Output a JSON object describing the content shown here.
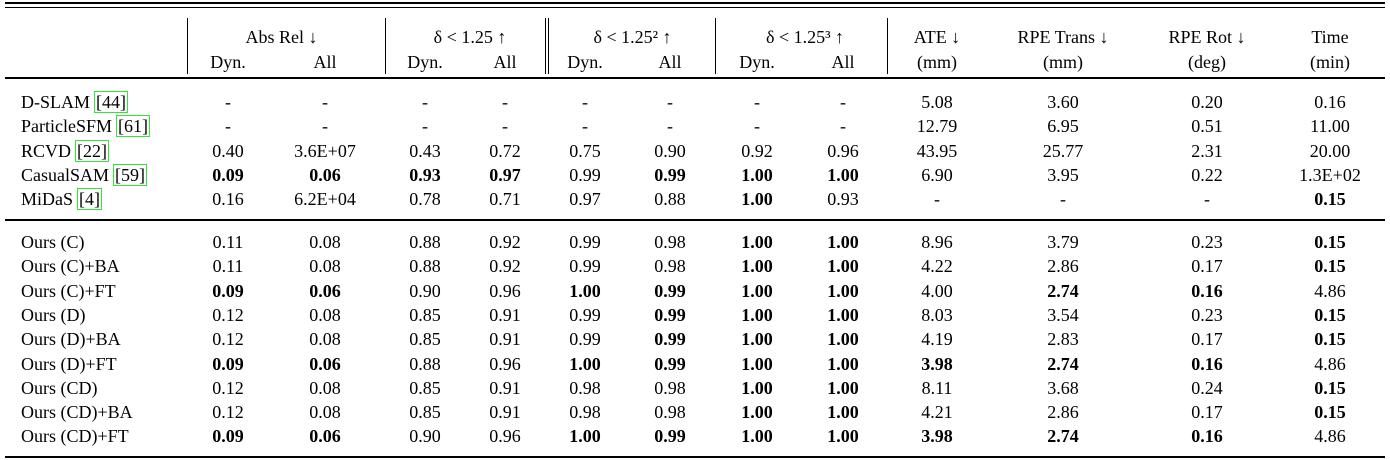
{
  "table": {
    "header": {
      "groups": [
        {
          "title": "Abs Rel ↓",
          "sub": [
            "Dyn.",
            "All"
          ]
        },
        {
          "title": "δ < 1.25 ↑",
          "sub": [
            "Dyn.",
            "All"
          ]
        },
        {
          "title": "δ < 1.25² ↑",
          "sub": [
            "Dyn.",
            "All"
          ]
        },
        {
          "title": "δ < 1.25³ ↑",
          "sub": [
            "Dyn.",
            "All"
          ]
        },
        {
          "title": "ATE ↓",
          "sub": [
            "(mm)"
          ]
        },
        {
          "title": "RPE Trans ↓",
          "sub": [
            "(mm)"
          ]
        },
        {
          "title": "RPE Rot ↓",
          "sub": [
            "(deg)"
          ]
        },
        {
          "title": "Time",
          "sub": [
            "(min)"
          ]
        }
      ]
    },
    "sections": [
      {
        "rows": [
          {
            "label": "D-SLAM",
            "cite": "[44]",
            "cells": [
              "-",
              "-",
              "-",
              "-",
              "-",
              "-",
              "-",
              "-",
              "5.08",
              "3.60",
              "0.20",
              "0.16"
            ],
            "bold": []
          },
          {
            "label": "ParticleSFM",
            "cite": "[61]",
            "cells": [
              "-",
              "-",
              "-",
              "-",
              "-",
              "-",
              "-",
              "-",
              "12.79",
              "6.95",
              "0.51",
              "11.00"
            ],
            "bold": []
          },
          {
            "label": "RCVD",
            "cite": "[22]",
            "cells": [
              "0.40",
              "3.6E+07",
              "0.43",
              "0.72",
              "0.75",
              "0.90",
              "0.92",
              "0.96",
              "43.95",
              "25.77",
              "2.31",
              "20.00"
            ],
            "bold": []
          },
          {
            "label": "CasualSAM",
            "cite": "[59]",
            "cells": [
              "0.09",
              "0.06",
              "0.93",
              "0.97",
              "0.99",
              "0.99",
              "1.00",
              "1.00",
              "6.90",
              "3.95",
              "0.22",
              "1.3E+02"
            ],
            "bold": [
              0,
              1,
              2,
              3,
              5,
              6,
              7
            ]
          },
          {
            "label": "MiDaS",
            "cite": "[4]",
            "cells": [
              "0.16",
              "6.2E+04",
              "0.78",
              "0.71",
              "0.97",
              "0.88",
              "1.00",
              "0.93",
              "-",
              "-",
              "-",
              "0.15"
            ],
            "bold": [
              6,
              11
            ]
          }
        ]
      },
      {
        "rows": [
          {
            "label": "Ours (C)",
            "cells": [
              "0.11",
              "0.08",
              "0.88",
              "0.92",
              "0.99",
              "0.98",
              "1.00",
              "1.00",
              "8.96",
              "3.79",
              "0.23",
              "0.15"
            ],
            "bold": [
              6,
              7,
              11
            ]
          },
          {
            "label": "Ours (C)+BA",
            "cells": [
              "0.11",
              "0.08",
              "0.88",
              "0.92",
              "0.99",
              "0.98",
              "1.00",
              "1.00",
              "4.22",
              "2.86",
              "0.17",
              "0.15"
            ],
            "bold": [
              6,
              7,
              11
            ]
          },
          {
            "label": "Ours (C)+FT",
            "cells": [
              "0.09",
              "0.06",
              "0.90",
              "0.96",
              "1.00",
              "0.99",
              "1.00",
              "1.00",
              "4.00",
              "2.74",
              "0.16",
              "4.86"
            ],
            "bold": [
              0,
              1,
              4,
              5,
              6,
              7,
              9,
              10
            ]
          },
          {
            "label": "Ours (D)",
            "cells": [
              "0.12",
              "0.08",
              "0.85",
              "0.91",
              "0.99",
              "0.99",
              "1.00",
              "1.00",
              "8.03",
              "3.54",
              "0.23",
              "0.15"
            ],
            "bold": [
              5,
              6,
              7,
              11
            ]
          },
          {
            "label": "Ours (D)+BA",
            "cells": [
              "0.12",
              "0.08",
              "0.85",
              "0.91",
              "0.99",
              "0.99",
              "1.00",
              "1.00",
              "4.19",
              "2.83",
              "0.17",
              "0.15"
            ],
            "bold": [
              5,
              6,
              7,
              11
            ]
          },
          {
            "label": "Ours (D)+FT",
            "cells": [
              "0.09",
              "0.06",
              "0.88",
              "0.96",
              "1.00",
              "0.99",
              "1.00",
              "1.00",
              "3.98",
              "2.74",
              "0.16",
              "4.86"
            ],
            "bold": [
              0,
              1,
              4,
              5,
              6,
              7,
              8,
              9,
              10
            ]
          },
          {
            "label": "Ours (CD)",
            "cells": [
              "0.12",
              "0.08",
              "0.85",
              "0.91",
              "0.98",
              "0.98",
              "1.00",
              "1.00",
              "8.11",
              "3.68",
              "0.24",
              "0.15"
            ],
            "bold": [
              6,
              7,
              11
            ]
          },
          {
            "label": "Ours (CD)+BA",
            "cells": [
              "0.12",
              "0.08",
              "0.85",
              "0.91",
              "0.98",
              "0.98",
              "1.00",
              "1.00",
              "4.21",
              "2.86",
              "0.17",
              "0.15"
            ],
            "bold": [
              6,
              7,
              11
            ]
          },
          {
            "label": "Ours (CD)+FT",
            "cells": [
              "0.09",
              "0.06",
              "0.90",
              "0.96",
              "1.00",
              "0.99",
              "1.00",
              "1.00",
              "3.98",
              "2.74",
              "0.16",
              "4.86"
            ],
            "bold": [
              0,
              1,
              4,
              5,
              6,
              7,
              8,
              9,
              10
            ]
          }
        ]
      }
    ]
  }
}
